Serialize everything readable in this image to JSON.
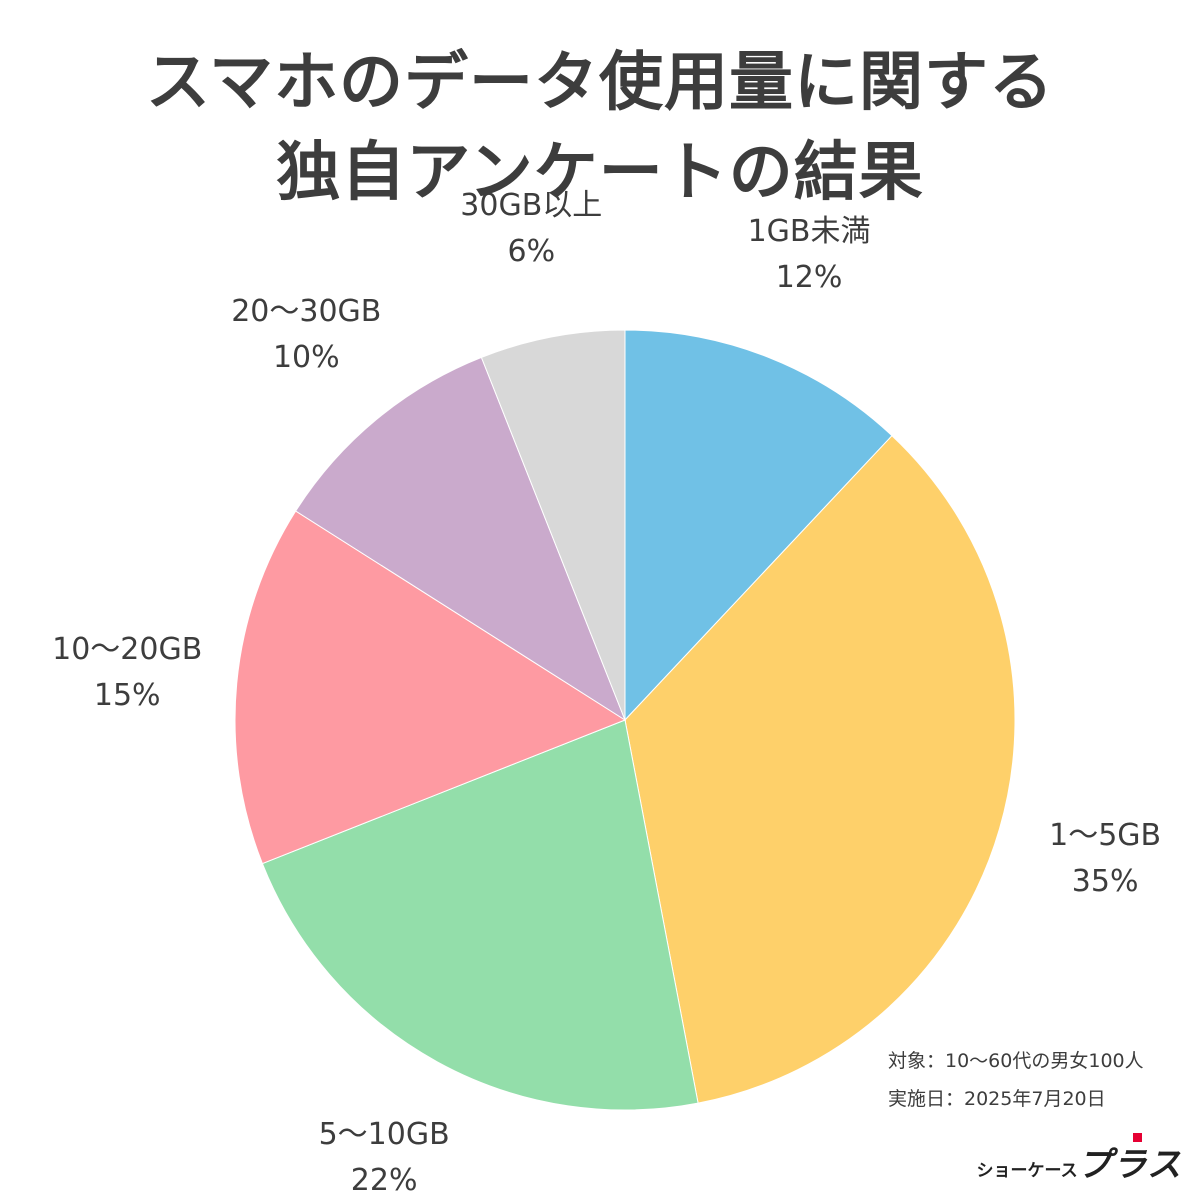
{
  "title": {
    "line1": "スマホのデータ使用量に関する",
    "line2": "独自アンケートの結果"
  },
  "chart_data": {
    "type": "pie",
    "slices": [
      {
        "label": "1GB未満",
        "value": 12,
        "display": "12%",
        "color": "#70c1e6"
      },
      {
        "label": "1〜5GB",
        "value": 35,
        "display": "35%",
        "color": "#fed06a"
      },
      {
        "label": "5〜10GB",
        "value": 22,
        "display": "22%",
        "color": "#93deaa"
      },
      {
        "label": "10〜20GB",
        "value": 15,
        "display": "15%",
        "color": "#fe9aa2"
      },
      {
        "label": "20〜30GB",
        "value": 10,
        "display": "10%",
        "color": "#caaacc"
      },
      {
        "label": "30GB以上",
        "value": 6,
        "display": "6%",
        "color": "#d8d8d8"
      }
    ],
    "start": "top",
    "direction": "clockwise"
  },
  "notes": {
    "target": "対象：10〜60代の男女100人",
    "date": "実施日：2025年7月20日"
  },
  "logo": {
    "small": "ショーケース",
    "large": "プラス"
  }
}
